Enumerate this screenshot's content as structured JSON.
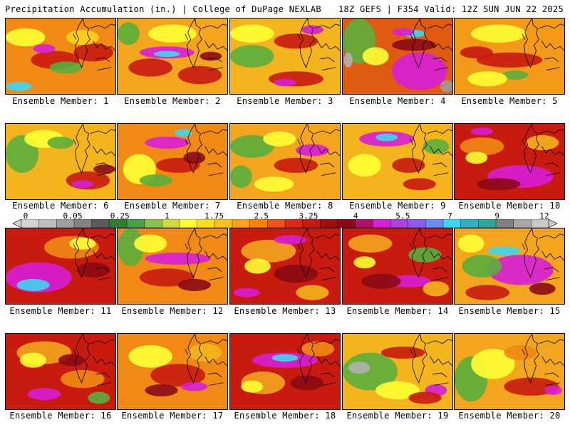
{
  "header": {
    "left": "Precipitation Accumulation (in.) | College of DuPage NEXLAB",
    "right": "18Z GEFS | F354 Valid: 12Z SUN JUN 22 2025"
  },
  "panels": [
    {
      "label": "Ensemble Member: 1",
      "base": "#f08a14",
      "blobs": [
        [
          "#ffff33",
          0.18,
          0.25,
          0.18,
          0.12
        ],
        [
          "#c81a0f",
          0.45,
          0.55,
          0.22,
          0.12
        ],
        [
          "#5aae3c",
          0.55,
          0.65,
          0.15,
          0.08
        ],
        [
          "#d71ed8",
          0.35,
          0.4,
          0.1,
          0.06
        ],
        [
          "#3ed6ee",
          0.12,
          0.9,
          0.12,
          0.06
        ],
        [
          "#c81a0f",
          0.8,
          0.45,
          0.18,
          0.12
        ],
        [
          "#ffd21a",
          0.7,
          0.25,
          0.15,
          0.1
        ]
      ]
    },
    {
      "label": "Ensemble Member: 2",
      "base": "#f3a51e",
      "blobs": [
        [
          "#d71ed8",
          0.45,
          0.45,
          0.25,
          0.08
        ],
        [
          "#3ed6ee",
          0.45,
          0.47,
          0.12,
          0.04
        ],
        [
          "#ffff33",
          0.5,
          0.2,
          0.22,
          0.12
        ],
        [
          "#5aae3c",
          0.1,
          0.2,
          0.1,
          0.15
        ],
        [
          "#c81a0f",
          0.3,
          0.65,
          0.2,
          0.12
        ],
        [
          "#c81a0f",
          0.75,
          0.75,
          0.2,
          0.12
        ],
        [
          "#8b0a14",
          0.85,
          0.5,
          0.1,
          0.06
        ]
      ]
    },
    {
      "label": "Ensemble Member: 3",
      "base": "#f3b41e",
      "blobs": [
        [
          "#5aae3c",
          0.2,
          0.5,
          0.2,
          0.15
        ],
        [
          "#ffff33",
          0.2,
          0.2,
          0.2,
          0.12
        ],
        [
          "#c81a0f",
          0.6,
          0.3,
          0.2,
          0.1
        ],
        [
          "#d71ed8",
          0.75,
          0.15,
          0.1,
          0.06
        ],
        [
          "#c81a0f",
          0.6,
          0.8,
          0.25,
          0.1
        ],
        [
          "#d71ed8",
          0.5,
          0.85,
          0.1,
          0.05
        ]
      ]
    },
    {
      "label": "Ensemble Member: 4",
      "base": "#e05a10",
      "blobs": [
        [
          "#d71ed8",
          0.7,
          0.7,
          0.25,
          0.25
        ],
        [
          "#8b0a14",
          0.65,
          0.35,
          0.2,
          0.08
        ],
        [
          "#5aae3c",
          0.15,
          0.3,
          0.15,
          0.3
        ],
        [
          "#ffff33",
          0.3,
          0.5,
          0.12,
          0.12
        ],
        [
          "#3ed6ee",
          0.65,
          0.2,
          0.1,
          0.05
        ],
        [
          "#d71ed8",
          0.55,
          0.18,
          0.1,
          0.05
        ],
        [
          "#9a9a9a",
          0.95,
          0.9,
          0.06,
          0.08
        ],
        [
          "#b0b0b0",
          0.05,
          0.55,
          0.04,
          0.1
        ]
      ]
    },
    {
      "label": "Ensemble Member: 5",
      "base": "#f39a18",
      "blobs": [
        [
          "#ffff33",
          0.4,
          0.2,
          0.25,
          0.12
        ],
        [
          "#c81a0f",
          0.5,
          0.55,
          0.3,
          0.1
        ],
        [
          "#5aae3c",
          0.55,
          0.75,
          0.12,
          0.06
        ],
        [
          "#ffff33",
          0.3,
          0.8,
          0.18,
          0.1
        ],
        [
          "#c81a0f",
          0.2,
          0.45,
          0.15,
          0.08
        ]
      ]
    },
    {
      "label": "Ensemble Member: 6",
      "base": "#f3b41e",
      "blobs": [
        [
          "#5aae3c",
          0.15,
          0.4,
          0.15,
          0.25
        ],
        [
          "#ffff33",
          0.35,
          0.2,
          0.18,
          0.12
        ],
        [
          "#c81a0f",
          0.75,
          0.75,
          0.2,
          0.12
        ],
        [
          "#d71ed8",
          0.7,
          0.8,
          0.1,
          0.05
        ],
        [
          "#8b0a14",
          0.9,
          0.6,
          0.1,
          0.06
        ],
        [
          "#5aae3c",
          0.5,
          0.25,
          0.12,
          0.08
        ]
      ]
    },
    {
      "label": "Ensemble Member: 7",
      "base": "#f08a14",
      "blobs": [
        [
          "#d71ed8",
          0.45,
          0.25,
          0.2,
          0.08
        ],
        [
          "#3ed6ee",
          0.6,
          0.12,
          0.08,
          0.05
        ],
        [
          "#ffff33",
          0.2,
          0.6,
          0.15,
          0.2
        ],
        [
          "#c81a0f",
          0.55,
          0.55,
          0.2,
          0.1
        ],
        [
          "#5aae3c",
          0.35,
          0.75,
          0.15,
          0.08
        ],
        [
          "#8b0a14",
          0.7,
          0.45,
          0.1,
          0.08
        ]
      ]
    },
    {
      "label": "Ensemble Member: 8",
      "base": "#f3a51e",
      "blobs": [
        [
          "#5aae3c",
          0.2,
          0.3,
          0.2,
          0.15
        ],
        [
          "#5aae3c",
          0.1,
          0.7,
          0.1,
          0.15
        ],
        [
          "#d71ed8",
          0.75,
          0.35,
          0.15,
          0.08
        ],
        [
          "#c81a0f",
          0.6,
          0.55,
          0.2,
          0.1
        ],
        [
          "#ffff33",
          0.45,
          0.2,
          0.15,
          0.1
        ],
        [
          "#ffff33",
          0.4,
          0.8,
          0.18,
          0.1
        ]
      ]
    },
    {
      "label": "Ensemble Member: 9",
      "base": "#f3b41e",
      "blobs": [
        [
          "#d71ed8",
          0.4,
          0.2,
          0.25,
          0.1
        ],
        [
          "#3ed6ee",
          0.4,
          0.18,
          0.1,
          0.05
        ],
        [
          "#ffff33",
          0.2,
          0.55,
          0.15,
          0.15
        ],
        [
          "#c81a0f",
          0.6,
          0.55,
          0.15,
          0.1
        ],
        [
          "#5aae3c",
          0.85,
          0.3,
          0.12,
          0.1
        ],
        [
          "#c81a0f",
          0.7,
          0.8,
          0.15,
          0.08
        ]
      ]
    },
    {
      "label": "Ensemble Member: 10",
      "base": "#c81a0f",
      "blobs": [
        [
          "#f08a14",
          0.25,
          0.3,
          0.2,
          0.12
        ],
        [
          "#ffff33",
          0.2,
          0.45,
          0.1,
          0.08
        ],
        [
          "#d71ed8",
          0.6,
          0.7,
          0.3,
          0.15
        ],
        [
          "#8b0a14",
          0.4,
          0.8,
          0.2,
          0.08
        ],
        [
          "#d71ed8",
          0.25,
          0.1,
          0.1,
          0.05
        ],
        [
          "#f3b41e",
          0.8,
          0.25,
          0.15,
          0.1
        ]
      ]
    },
    {
      "label": "Ensemble Member: 11",
      "base": "#c81a0f",
      "blobs": [
        [
          "#d71ed8",
          0.3,
          0.65,
          0.3,
          0.2
        ],
        [
          "#3ed6ee",
          0.25,
          0.75,
          0.15,
          0.08
        ],
        [
          "#f08a14",
          0.6,
          0.25,
          0.25,
          0.15
        ],
        [
          "#ffff33",
          0.7,
          0.2,
          0.12,
          0.08
        ],
        [
          "#8b0a14",
          0.8,
          0.55,
          0.15,
          0.1
        ]
      ]
    },
    {
      "label": "Ensemble Member: 12",
      "base": "#f08a14",
      "blobs": [
        [
          "#5aae3c",
          0.12,
          0.25,
          0.12,
          0.25
        ],
        [
          "#d71ed8",
          0.55,
          0.4,
          0.3,
          0.08
        ],
        [
          "#c81a0f",
          0.45,
          0.65,
          0.25,
          0.12
        ],
        [
          "#ffff33",
          0.3,
          0.2,
          0.15,
          0.12
        ],
        [
          "#8b0a14",
          0.7,
          0.75,
          0.15,
          0.08
        ]
      ]
    },
    {
      "label": "Ensemble Member: 13",
      "base": "#c81a0f",
      "blobs": [
        [
          "#f3a51e",
          0.35,
          0.3,
          0.25,
          0.15
        ],
        [
          "#d71ed8",
          0.55,
          0.15,
          0.15,
          0.06
        ],
        [
          "#ffff33",
          0.25,
          0.5,
          0.12,
          0.1
        ],
        [
          "#8b0a14",
          0.6,
          0.6,
          0.2,
          0.12
        ],
        [
          "#f3b41e",
          0.75,
          0.85,
          0.15,
          0.1
        ],
        [
          "#d71ed8",
          0.15,
          0.85,
          0.12,
          0.06
        ]
      ]
    },
    {
      "label": "Ensemble Member: 14",
      "base": "#c81a0f",
      "blobs": [
        [
          "#f3a51e",
          0.25,
          0.2,
          0.2,
          0.12
        ],
        [
          "#5aae3c",
          0.75,
          0.35,
          0.15,
          0.1
        ],
        [
          "#ffff33",
          0.2,
          0.45,
          0.1,
          0.08
        ],
        [
          "#d71ed8",
          0.6,
          0.7,
          0.2,
          0.08
        ],
        [
          "#8b0a14",
          0.35,
          0.7,
          0.18,
          0.1
        ],
        [
          "#f3b41e",
          0.85,
          0.8,
          0.12,
          0.1
        ]
      ]
    },
    {
      "label": "Ensemble Member: 15",
      "base": "#f3a51e",
      "blobs": [
        [
          "#d71ed8",
          0.6,
          0.55,
          0.3,
          0.2
        ],
        [
          "#3ed6ee",
          0.45,
          0.3,
          0.15,
          0.06
        ],
        [
          "#5aae3c",
          0.25,
          0.5,
          0.18,
          0.15
        ],
        [
          "#ffff33",
          0.15,
          0.2,
          0.12,
          0.12
        ],
        [
          "#c81a0f",
          0.3,
          0.85,
          0.2,
          0.1
        ],
        [
          "#8b0a14",
          0.8,
          0.8,
          0.12,
          0.08
        ]
      ]
    },
    {
      "label": "Ensemble Member: 16",
      "base": "#c81a0f",
      "blobs": [
        [
          "#f3a51e",
          0.35,
          0.25,
          0.25,
          0.15
        ],
        [
          "#ffff33",
          0.25,
          0.35,
          0.12,
          0.1
        ],
        [
          "#d71ed8",
          0.35,
          0.8,
          0.15,
          0.08
        ],
        [
          "#f08a14",
          0.7,
          0.6,
          0.2,
          0.12
        ],
        [
          "#8b0a14",
          0.6,
          0.35,
          0.12,
          0.08
        ],
        [
          "#5aae3c",
          0.85,
          0.85,
          0.1,
          0.08
        ]
      ]
    },
    {
      "label": "Ensemble Member: 17",
      "base": "#f08a14",
      "blobs": [
        [
          "#ffff33",
          0.3,
          0.3,
          0.2,
          0.15
        ],
        [
          "#c81a0f",
          0.55,
          0.55,
          0.25,
          0.15
        ],
        [
          "#d71ed8",
          0.7,
          0.7,
          0.12,
          0.06
        ],
        [
          "#8b0a14",
          0.4,
          0.75,
          0.15,
          0.08
        ],
        [
          "#f3b41e",
          0.8,
          0.25,
          0.15,
          0.12
        ]
      ]
    },
    {
      "label": "Ensemble Member: 18",
      "base": "#c81a0f",
      "blobs": [
        [
          "#d71ed8",
          0.5,
          0.35,
          0.3,
          0.1
        ],
        [
          "#3ed6ee",
          0.5,
          0.32,
          0.12,
          0.05
        ],
        [
          "#f3a51e",
          0.3,
          0.65,
          0.2,
          0.15
        ],
        [
          "#ffff33",
          0.2,
          0.7,
          0.1,
          0.08
        ],
        [
          "#8b0a14",
          0.7,
          0.65,
          0.15,
          0.1
        ],
        [
          "#f08a14",
          0.8,
          0.2,
          0.15,
          0.1
        ]
      ]
    },
    {
      "label": "Ensemble Member: 19",
      "base": "#f3b41e",
      "blobs": [
        [
          "#5aae3c",
          0.25,
          0.5,
          0.25,
          0.25
        ],
        [
          "#b0b0b0",
          0.15,
          0.45,
          0.1,
          0.08
        ],
        [
          "#c81a0f",
          0.55,
          0.25,
          0.2,
          0.08
        ],
        [
          "#d71ed8",
          0.85,
          0.75,
          0.1,
          0.08
        ],
        [
          "#ffff33",
          0.5,
          0.75,
          0.2,
          0.12
        ],
        [
          "#c81a0f",
          0.75,
          0.85,
          0.15,
          0.08
        ]
      ]
    },
    {
      "label": "Ensemble Member: 20",
      "base": "#f3a51e",
      "blobs": [
        [
          "#5aae3c",
          0.15,
          0.6,
          0.15,
          0.3
        ],
        [
          "#ffff33",
          0.35,
          0.4,
          0.2,
          0.2
        ],
        [
          "#c81a0f",
          0.7,
          0.7,
          0.25,
          0.12
        ],
        [
          "#d71ed8",
          0.9,
          0.75,
          0.08,
          0.06
        ],
        [
          "#f08a14",
          0.6,
          0.25,
          0.15,
          0.1
        ]
      ]
    }
  ],
  "colorbar": {
    "colors": [
      "#d3d3d3",
      "#bebebe",
      "#a0a0a0",
      "#828282",
      "#5a5a5a",
      "#2e7d32",
      "#43a047",
      "#8bc34a",
      "#cddc39",
      "#ffff33",
      "#ffe01a",
      "#ffc21a",
      "#ffa21a",
      "#ff7f00",
      "#f0501a",
      "#e0281a",
      "#c81a0f",
      "#a01010",
      "#8b0a14",
      "#b0106e",
      "#d71ed8",
      "#b040e0",
      "#8c5af0",
      "#6c8cf5",
      "#3ed6ee",
      "#30b0c0",
      "#2aa89a",
      "#808080",
      "#a8a8a8",
      "#c8c8c8"
    ],
    "labels": [
      "0",
      "0.05",
      "0.25",
      "1",
      "1.75",
      "2.5",
      "3.25",
      "4",
      "5.5",
      "7",
      "9",
      "12"
    ]
  }
}
